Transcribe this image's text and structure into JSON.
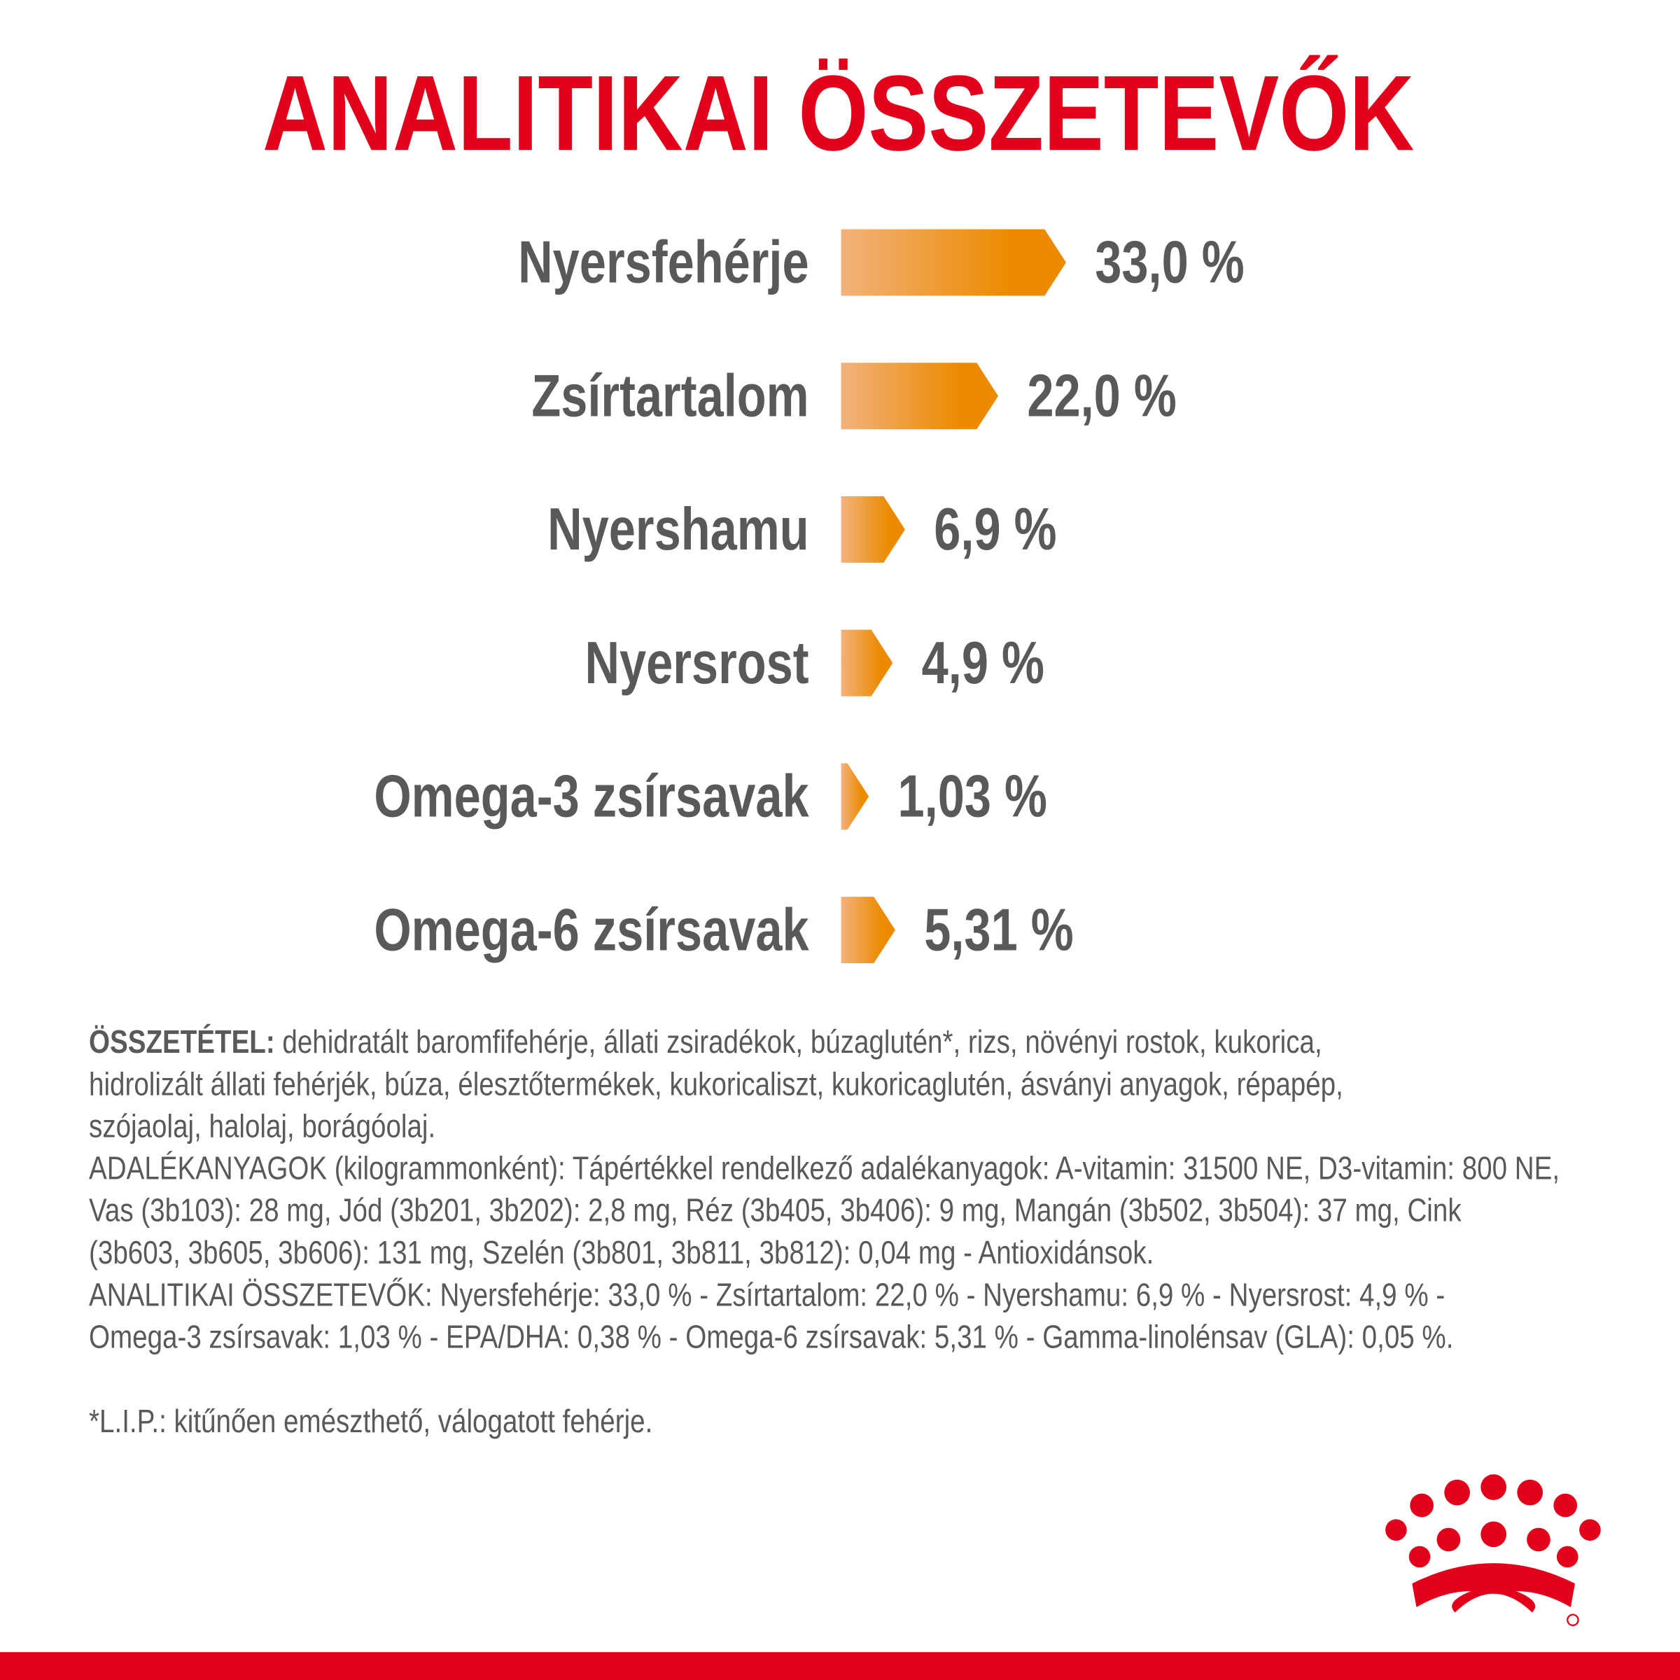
{
  "chart_data": {
    "type": "bar",
    "title": "ANALITIKAI ÖSSZETEVŐK",
    "categories": [
      "Nyersfehérje",
      "Zsírtartalom",
      "Nyershamu",
      "Nyersrost",
      "Omega-3 zsírsavak",
      "Omega-6 zsírsavak"
    ],
    "values": [
      33.0,
      22.0,
      6.9,
      4.9,
      1.03,
      5.31
    ],
    "value_labels": [
      "33,0 %",
      "22,0 %",
      "6,9 %",
      "4,9 %",
      "1,03 %",
      "5,31 %"
    ],
    "color": "#ec8b00"
  },
  "composition": {
    "label": "ÖSSZETÉTEL:",
    "lines": [
      "dehidratált baromfifehérje, állati zsiradékok, búzaglutén*, rizs, növényi rostok, kukorica,",
      "hidrolizált állati fehérjék, búza, élesztőtermékek, kukoricaliszt, kukoricaglutén, ásványi anyagok, répapép,",
      "szójaolaj, halolaj, borágóolaj."
    ]
  },
  "additives_lines": [
    "ADALÉKANYAGOK (kilogrammonként): Tápértékkel rendelkező adalékanyagok: A-vitamin: 31500 NE, D3-vitamin: 800 NE,",
    "Vas (3b103): 28 mg, Jód (3b201, 3b202): 2,8 mg, Réz (3b405, 3b406): 9 mg, Mangán (3b502, 3b504): 37 mg, Cink",
    "(3b603, 3b605, 3b606): 131 mg, Szelén (3b801, 3b811, 3b812): 0,04 mg - Antioxidánsok."
  ],
  "analytical_lines": [
    "ANALITIKAI ÖSSZETEVŐK: Nyersfehérje: 33,0 % - Zsírtartalom: 22,0 % - Nyershamu: 6,9 % - Nyersrost: 4,9 % -",
    "Omega-3 zsírsavak: 1,03 % - EPA/DHA: 0,38 % - Omega-6 zsírsavak: 5,31 % - Gamma-linolénsav (GLA): 0,05 %."
  ],
  "footnote": "*L.I.P.: kitűnően emészthető, válogatott fehérje."
}
